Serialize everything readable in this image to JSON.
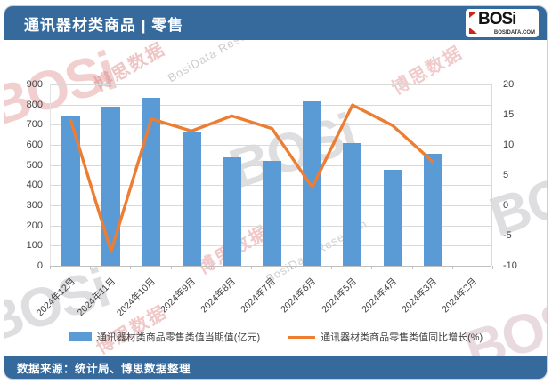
{
  "header": {
    "title": "通讯器材类商品 | 零售",
    "logo": {
      "brand": "BOSi",
      "domain": "BOSIDATA.COM"
    }
  },
  "footer": {
    "source": "数据来源：统计局、博思数据整理"
  },
  "watermarks": [
    {
      "text": "BOSi"
    },
    {
      "text": "博思数据"
    },
    {
      "text": "BosiData Research"
    },
    {
      "text": "BOSi"
    },
    {
      "text": "博思数据"
    },
    {
      "text": "BosiData Research"
    },
    {
      "text": "BOSi"
    },
    {
      "text": "BOSi"
    },
    {
      "text": "博思数据"
    },
    {
      "text": "BOSi"
    },
    {
      "text": "博思数据"
    }
  ],
  "colors": {
    "header_bg": "#36699c",
    "bar": "#5B9BD5",
    "line": "#ED7D31",
    "grid": "#d9d9d9",
    "axis_text": "#404040"
  },
  "chart_data": {
    "type": "bar+line",
    "title": "通讯器材类商品 | 零售",
    "categories": [
      "2024年12月",
      "2024年11月",
      "2024年10月",
      "2024年9月",
      "2024年8月",
      "2024年7月",
      "2024年6月",
      "2024年5月",
      "2024年4月",
      "2024年3月",
      "2024年2月"
    ],
    "series": [
      {
        "name": "通讯器材类商品零售类值当期值(亿元)",
        "type": "bar",
        "axis": "left",
        "color": "#5B9BD5",
        "values": [
          740,
          790,
          835,
          665,
          540,
          520,
          815,
          610,
          476,
          558,
          null
        ]
      },
      {
        "name": "通讯器材类商品零售类值同比增长(%)",
        "type": "line",
        "axis": "right",
        "color": "#ED7D31",
        "values": [
          14,
          -7.6,
          14.3,
          12.3,
          14.8,
          12.7,
          3,
          16.6,
          13.2,
          7.2,
          null
        ]
      }
    ],
    "left_axis": {
      "min": 0,
      "max": 900,
      "ticks": [
        "900",
        "800",
        "700",
        "600",
        "500",
        "400",
        "300",
        "200",
        "100",
        "0"
      ]
    },
    "right_axis": {
      "min": -10,
      "max": 20,
      "ticks": [
        "20",
        "15",
        "10",
        "5",
        "0",
        "-5",
        "-10"
      ]
    },
    "grid": true,
    "legend_position": "bottom"
  }
}
